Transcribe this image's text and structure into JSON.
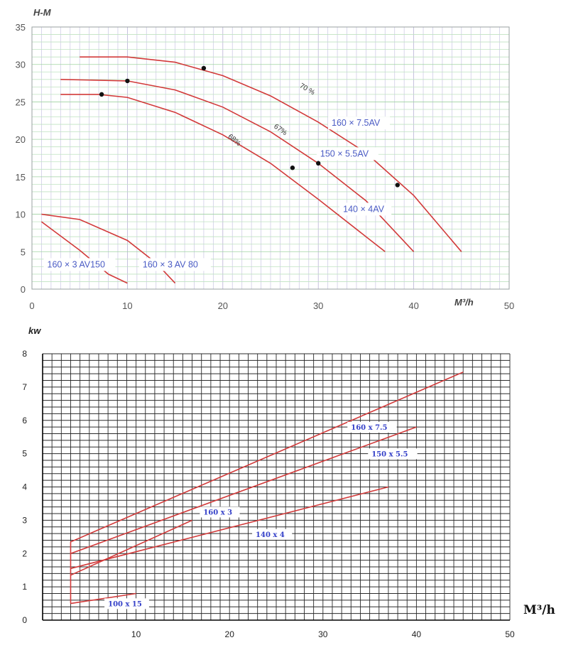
{
  "chart_data": [
    {
      "type": "line",
      "ylabel": "H-M",
      "xlabel": "M³/h",
      "xlim": [
        0,
        50
      ],
      "ylim": [
        0,
        35
      ],
      "x_ticks": [
        0,
        10,
        20,
        30,
        40,
        50
      ],
      "y_ticks": [
        0,
        5,
        10,
        15,
        20,
        25,
        30,
        35
      ],
      "grid": true,
      "series": [
        {
          "name": "160 × 7.5AV",
          "x": [
            5,
            10,
            15,
            20,
            25,
            30,
            35,
            40,
            45
          ],
          "y": [
            31,
            31,
            30.3,
            28.5,
            25.8,
            22.3,
            18.2,
            12.5,
            5
          ]
        },
        {
          "name": "150 × 5.5AV",
          "x": [
            3,
            10,
            15,
            20,
            25,
            30,
            35,
            40
          ],
          "y": [
            28,
            27.8,
            26.6,
            24.3,
            21,
            16.8,
            11.8,
            5
          ]
        },
        {
          "name": "140 × 4AV",
          "x": [
            3,
            7,
            10,
            15,
            20,
            25,
            30,
            35,
            37
          ],
          "y": [
            26,
            26,
            25.6,
            23.6,
            20.6,
            16.8,
            12,
            7,
            5
          ]
        },
        {
          "name": "160 × 3 AV150",
          "x": [
            1,
            5,
            8,
            10
          ],
          "y": [
            9,
            5.2,
            2,
            0.8
          ]
        },
        {
          "name": "160 × 3 AV 80",
          "x": [
            1,
            5,
            10,
            13,
            15
          ],
          "y": [
            10,
            9.3,
            6.5,
            3.5,
            0.8
          ]
        }
      ],
      "markers": [
        {
          "x": 7.3,
          "y": 26
        },
        {
          "x": 10,
          "y": 27.8
        },
        {
          "x": 18,
          "y": 29.5
        },
        {
          "x": 27.3,
          "y": 16.2
        },
        {
          "x": 30,
          "y": 16.8
        },
        {
          "x": 38.3,
          "y": 13.9
        }
      ],
      "efficiency_labels": [
        {
          "text": "70 %",
          "x": 28,
          "y": 27
        },
        {
          "text": "67%",
          "x": 25.3,
          "y": 21.6
        },
        {
          "text": "68%",
          "x": 20.5,
          "y": 20.3
        }
      ]
    },
    {
      "type": "line",
      "ylabel": "kw",
      "xlabel": "M³/h",
      "xlim": [
        0,
        50
      ],
      "ylim": [
        0,
        8
      ],
      "x_ticks": [
        10,
        20,
        30,
        40,
        50
      ],
      "y_ticks": [
        0,
        1,
        2,
        3,
        4,
        5,
        6,
        7,
        8
      ],
      "grid": true,
      "series": [
        {
          "name": "160 x 7.5",
          "x": [
            3,
            45
          ],
          "y": [
            2.35,
            7.45
          ]
        },
        {
          "name": "150 x 5.5",
          "x": [
            3,
            40
          ],
          "y": [
            2.0,
            5.8
          ]
        },
        {
          "name": "160 x 3",
          "x": [
            3,
            16
          ],
          "y": [
            1.35,
            3.0
          ]
        },
        {
          "name": "140 x 4",
          "x": [
            3,
            37
          ],
          "y": [
            1.55,
            4.0
          ]
        },
        {
          "name": "100 x 15",
          "x": [
            3,
            10
          ],
          "y": [
            0.5,
            0.8
          ]
        }
      ]
    }
  ]
}
